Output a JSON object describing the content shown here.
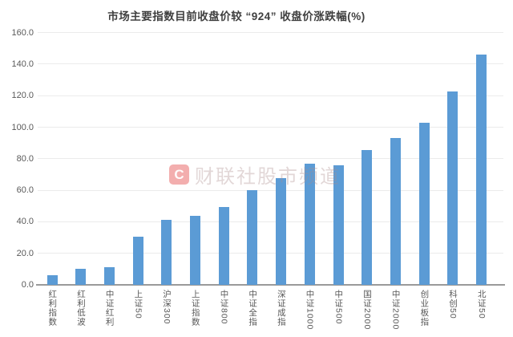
{
  "chart_data": {
    "type": "bar",
    "title": "市场主要指数目前收盘价较 “924” 收盘价涨跌幅(%)",
    "categories": [
      "红利指数",
      "红利低波",
      "中证红利",
      "上证50",
      "沪深300",
      "上证指数",
      "中证800",
      "中证全指",
      "深证成指",
      "中证1000",
      "中证500",
      "国证2000",
      "中证2000",
      "创业板指",
      "科创50",
      "北证50"
    ],
    "values": [
      6.0,
      10.4,
      11.1,
      30.5,
      41.0,
      43.6,
      49.5,
      60.3,
      67.6,
      76.8,
      75.7,
      85.5,
      93.0,
      102.6,
      122.4,
      146.0
    ],
    "xlabel": "",
    "ylabel": "",
    "ylim": [
      0,
      160
    ],
    "ytick_step": 20,
    "ytick_labels": [
      "0.0",
      "20.0",
      "40.0",
      "60.0",
      "80.0",
      "100.0",
      "120.0",
      "140.0",
      "160.0"
    ],
    "grid": true,
    "legend": null,
    "bar_color": "#5B9BD5"
  },
  "watermark": {
    "logo_letter": "C",
    "text": "财联社股市频道"
  },
  "colors": {
    "background": "#ffffff",
    "bar": "#5B9BD5",
    "gridline": "#ebebeb",
    "axis_line": "#9a9a9a",
    "title_text": "#3f3f3f",
    "tick_text": "#595959",
    "watermark_red": "#e23e3e"
  }
}
